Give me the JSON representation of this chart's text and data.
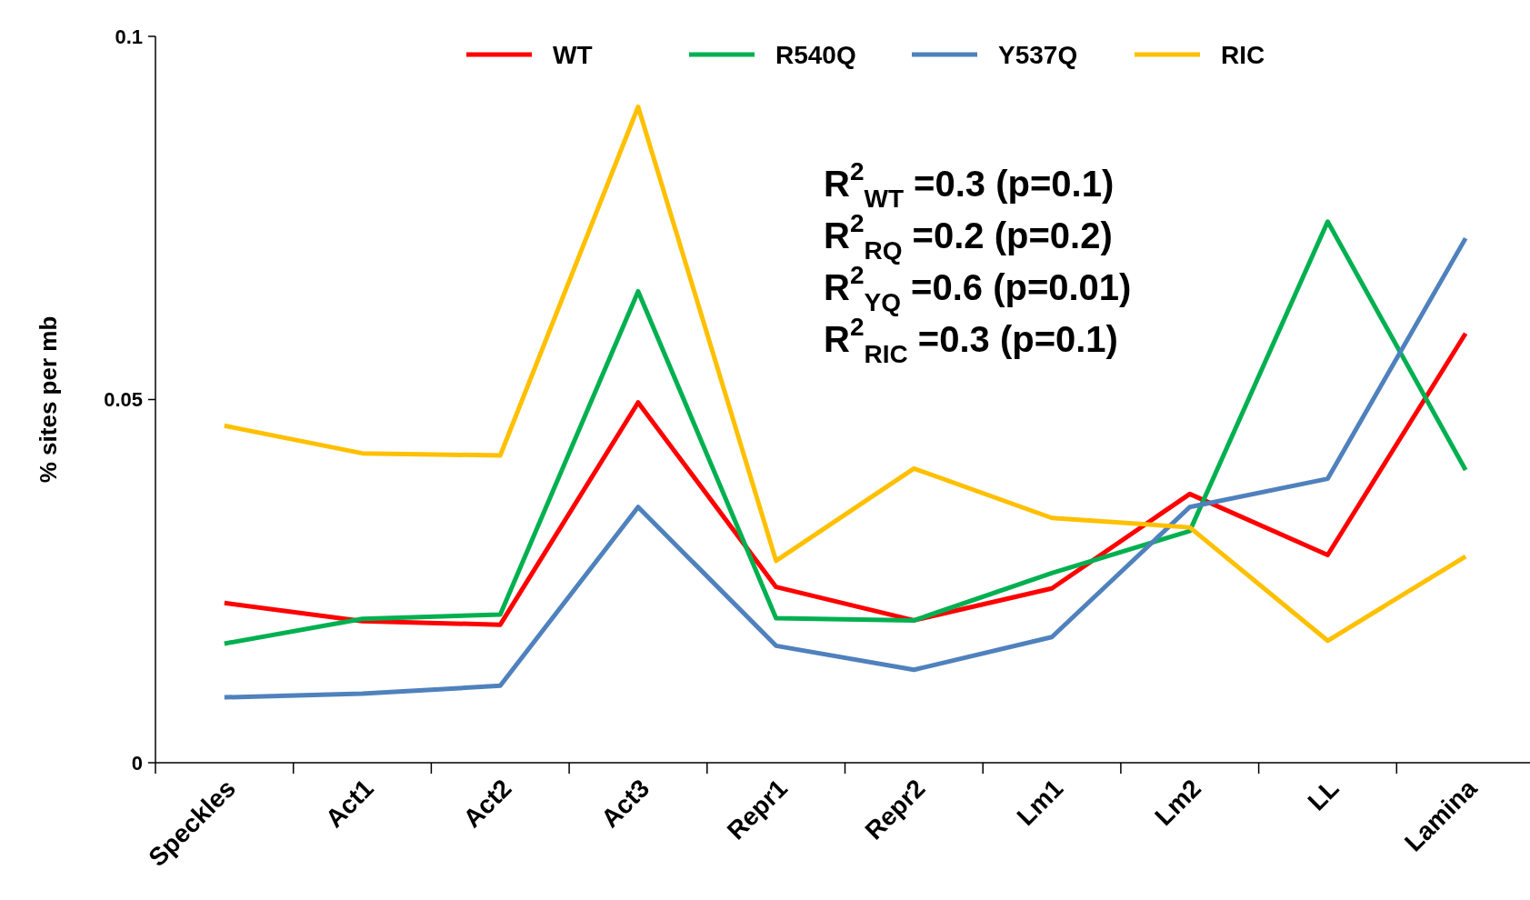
{
  "chart_data": {
    "type": "line",
    "ylabel": "% sites per mb",
    "categories": [
      "Speckles",
      "Act1",
      "Act2",
      "Act3",
      "Repr1",
      "Repr2",
      "Lm1",
      "Lm2",
      "LL",
      "Lamina"
    ],
    "series": [
      {
        "name": "WT",
        "color": "#ff0000",
        "values": [
          0.022,
          0.0195,
          0.019,
          0.0496,
          0.0242,
          0.0196,
          0.024,
          0.037,
          0.0286,
          0.0591
        ]
      },
      {
        "name": "R540Q",
        "color": "#00b050",
        "values": [
          0.0164,
          0.0198,
          0.0204,
          0.0649,
          0.0199,
          0.0196,
          0.0261,
          0.0319,
          0.0745,
          0.0403
        ]
      },
      {
        "name": "Y537Q",
        "color": "#4f81bd",
        "values": [
          0.009,
          0.0095,
          0.0106,
          0.0352,
          0.0161,
          0.0128,
          0.0173,
          0.0352,
          0.0391,
          0.0722
        ]
      },
      {
        "name": "RIC",
        "color": "#ffc000",
        "values": [
          0.0464,
          0.0426,
          0.0423,
          0.0903,
          0.0278,
          0.0405,
          0.0337,
          0.0324,
          0.0168,
          0.0284
        ]
      }
    ],
    "ylim": [
      0,
      0.1
    ],
    "yticks": [
      0,
      0.05,
      0.1
    ],
    "grid": false,
    "legend": "top",
    "marker": "none",
    "line_style": "solid",
    "annotations": [
      "R$^{2}$$_{WT}$ =0.3 (p=0.1)",
      "R$^{2}$$_{RQ}$ =0.2 (p=0.2)",
      "R$^{2}$$_{YQ}$ =0.6 (p=0.01)",
      "R$^{2}$$_{RIC}$ =0.3 (p=0.1)"
    ]
  }
}
